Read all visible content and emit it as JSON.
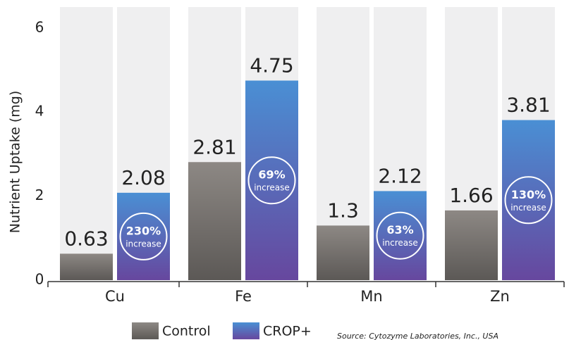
{
  "chart_data": {
    "type": "bar",
    "y_label": "Nutrient Uptake (mg)",
    "source": "Source:  Cytozyme Laboratories, Inc., USA",
    "categories": [
      "Cu",
      "Fe",
      "Mn",
      "Zn"
    ],
    "series": [
      {
        "name": "Control",
        "color": "#8d8884",
        "values": [
          0.63,
          2.81,
          1.3,
          1.66
        ]
      },
      {
        "name": "CROP+",
        "color": "#4a8fd4",
        "values": [
          2.08,
          4.75,
          2.12,
          3.81
        ]
      }
    ],
    "annotations": [
      {
        "percent": "230%",
        "text": "increase"
      },
      {
        "percent": "69%",
        "text": "increase"
      },
      {
        "percent": "63%",
        "text": "increase"
      },
      {
        "percent": "130%",
        "text": "increase"
      }
    ],
    "ylim": [
      0,
      6.5
    ],
    "yticks": [
      0,
      2,
      4,
      6
    ]
  }
}
